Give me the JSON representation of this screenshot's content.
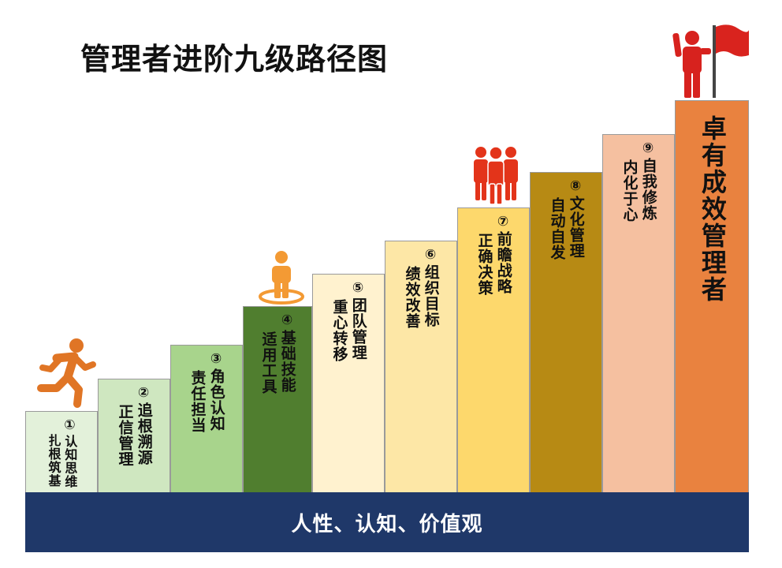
{
  "title": "管理者进阶九级路径图",
  "base_label": "人性、认知、价值观",
  "colors": {
    "base": "#1f3869",
    "runner_icon": "#e07525",
    "person_icon": "#f39a34",
    "team_icon": "#e3341a",
    "leader_icon": "#d7221e",
    "flag": "#d9231e"
  },
  "steps": [
    {
      "number": "①",
      "col1": "认知思维",
      "col2": "扎根筑基"
    },
    {
      "number": "②",
      "col1": "追根溯源",
      "col2": "正信管理"
    },
    {
      "number": "③",
      "col1": "角色认知",
      "col2": "责任担当"
    },
    {
      "number": "④",
      "col1": "基础技能",
      "col2": "适用工具"
    },
    {
      "number": "⑤",
      "col1": "团队管理",
      "col2": "重心转移"
    },
    {
      "number": "⑥",
      "col1": "组织目标",
      "col2": "绩效改善"
    },
    {
      "number": "⑦",
      "col1": "前瞻战略",
      "col2": "正确决策"
    },
    {
      "number": "⑧",
      "col1": "文化管理",
      "col2": "自动自发"
    },
    {
      "number": "⑨",
      "col1": "自我修炼",
      "col2": "内化于心"
    }
  ],
  "top_step": {
    "label": "卓有成效管理者"
  },
  "icons": [
    "runner-icon",
    "person-icon",
    "team-icon",
    "leader-flag-icon"
  ]
}
